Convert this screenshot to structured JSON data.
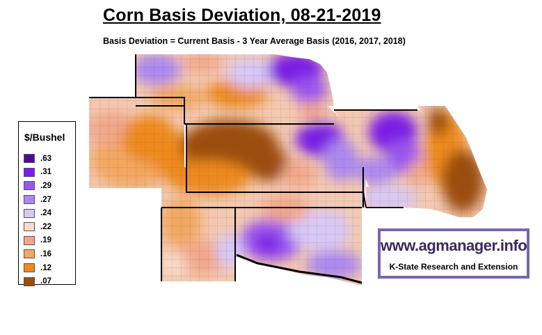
{
  "header": {
    "title": "Corn Basis Deviation, 08-21-2019",
    "subtitle": "Basis Deviation = Current Basis - 3 Year Average Basis (2016, 2017, 2018)"
  },
  "legend": {
    "title": "$/Bushel",
    "items": [
      {
        "label": ".63",
        "color": "#4b0f8c"
      },
      {
        "label": ".31",
        "color": "#7b1ee6"
      },
      {
        "label": ".29",
        "color": "#9b55f0"
      },
      {
        "label": ".27",
        "color": "#ab88ef"
      },
      {
        "label": ".24",
        "color": "#d8c8f6"
      },
      {
        "label": ".22",
        "color": "#f6dccb"
      },
      {
        "label": ".19",
        "color": "#f2a78b"
      },
      {
        "label": ".16",
        "color": "#f2a862"
      },
      {
        "label": ".12",
        "color": "#ee8a1c"
      },
      {
        "label": ".07",
        "color": "#9c4d0e"
      }
    ]
  },
  "logo": {
    "url_text": "www.agmanager.info",
    "tagline": "K-State Research and Extension"
  }
}
